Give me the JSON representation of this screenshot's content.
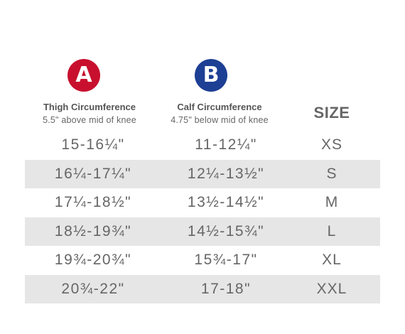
{
  "colors": {
    "badge_a": "#c8102e",
    "badge_b": "#1d3f94",
    "stripe": "#e6e6e6",
    "text": "#666666"
  },
  "column_a": {
    "badge": "A",
    "title": "Thigh Circumference",
    "subtitle": "5.5\" above mid of knee"
  },
  "column_b": {
    "badge": "B",
    "title": "Calf Circumference",
    "subtitle": "4.75\" below mid of knee"
  },
  "size_header": "SIZE",
  "rows": [
    {
      "thigh": "15-16¼\"",
      "calf": "11-12¼\"",
      "size": "XS"
    },
    {
      "thigh": "16¼-17¼\"",
      "calf": "12¼-13½\"",
      "size": "S"
    },
    {
      "thigh": "17¼-18½\"",
      "calf": "13½-14½\"",
      "size": "M"
    },
    {
      "thigh": "18½-19¾\"",
      "calf": "14½-15¾\"",
      "size": "L"
    },
    {
      "thigh": "19¾-20¾\"",
      "calf": "15¾-17\"",
      "size": "XL"
    },
    {
      "thigh": "20¾-22\"",
      "calf": "17-18\"",
      "size": "XXL"
    }
  ]
}
